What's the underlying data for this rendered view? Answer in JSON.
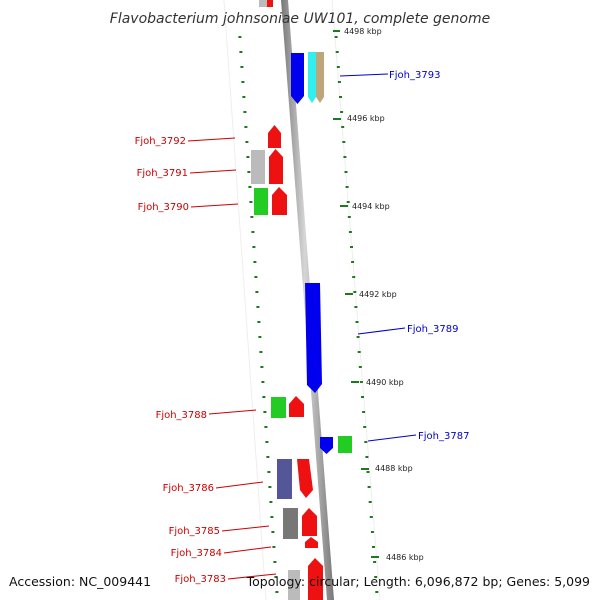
{
  "title": "Flavobacterium johnsoniae UW101, complete genome",
  "footer": {
    "accession": "Accession: NC_009441",
    "topology": "Topology: circular; Length: 6,096,872 bp; Genes: 5,099"
  },
  "colors": {
    "forward_label": "#cc0000",
    "reverse_label": "#0000cc",
    "tick": "#1f7a1f",
    "backbone": "#999999"
  },
  "scale_ticks": [
    {
      "label": "4498 kbp"
    },
    {
      "label": "4496 kbp"
    },
    {
      "label": "4494 kbp"
    },
    {
      "label": "4492 kbp"
    },
    {
      "label": "4490 kbp"
    },
    {
      "label": "4488 kbp"
    },
    {
      "label": "4486 kbp"
    }
  ],
  "gene_labels": {
    "fjoh_3793": "Fjoh_3793",
    "fjoh_3792": "Fjoh_3792",
    "fjoh_3791": "Fjoh_3791",
    "fjoh_3790": "Fjoh_3790",
    "fjoh_3789": "Fjoh_3789",
    "fjoh_3788": "Fjoh_3788",
    "fjoh_3787": "Fjoh_3787",
    "fjoh_3786": "Fjoh_3786",
    "fjoh_3785": "Fjoh_3785",
    "fjoh_3784": "Fjoh_3784",
    "fjoh_3783": "Fjoh_3783"
  }
}
